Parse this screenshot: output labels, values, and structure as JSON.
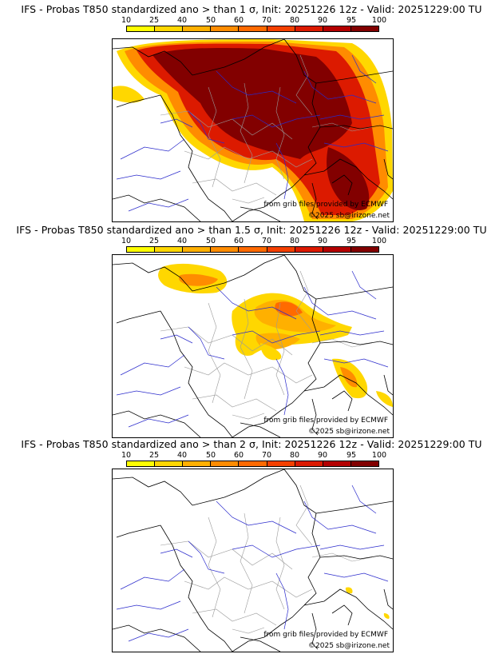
{
  "colorbar": {
    "ticks": [
      "10",
      "25",
      "40",
      "50",
      "60",
      "70",
      "80",
      "90",
      "95",
      "100"
    ],
    "colors": [
      "#ffff00",
      "#ffd700",
      "#ffb000",
      "#ff8c00",
      "#ff6a00",
      "#f44000",
      "#dc1a00",
      "#b40000",
      "#820000"
    ]
  },
  "panels": [
    {
      "title": "IFS - Probas T850  standardized ano > than 1 σ, Init: 20251226 12z - Valid: 20251229:00 TU",
      "credit": "from grib files provided by ECMWF",
      "copyright": "©2025 sb@irizone.net"
    },
    {
      "title": "IFS - Probas T850  standardized ano > than 1.5 σ, Init: 20251226 12z - Valid: 20251229:00 TU",
      "credit": "from grib files provided by ECMWF",
      "copyright": "©2025 sb@irizone.net"
    },
    {
      "title": "IFS - Probas T850  standardized ano > than 2 σ, Init: 20251226 12z - Valid: 20251229:00 TU",
      "credit": "from grib files provided by ECMWF",
      "copyright": "©2025 sb@irizone.net"
    }
  ]
}
